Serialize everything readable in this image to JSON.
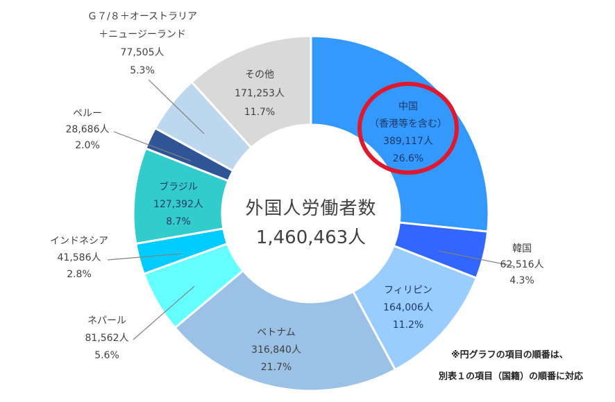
{
  "chart_data": {
    "type": "pie",
    "center": {
      "title": "外国人労働者数",
      "total": "1,460,463人"
    },
    "slices": [
      {
        "name": "中国",
        "sub": "（香港等を含む）",
        "count": "389,117人",
        "value": 26.6,
        "pct": "26.6%",
        "color": "#3399FF",
        "text_color": "#1F3864"
      },
      {
        "name": "韓国",
        "count": "62,516人",
        "value": 4.3,
        "pct": "4.3%",
        "color": "#3366FF",
        "text_color": "#404040"
      },
      {
        "name": "フィリピン",
        "count": "164,006人",
        "value": 11.2,
        "pct": "11.2%",
        "color": "#99CCFF",
        "text_color": "#1F3864"
      },
      {
        "name": "ベトナム",
        "count": "316,840人",
        "value": 21.7,
        "pct": "21.7%",
        "color": "#9BC2E6",
        "text_color": "#404040"
      },
      {
        "name": "ネパール",
        "count": "81,562人",
        "value": 5.6,
        "pct": "5.6%",
        "color": "#66FFFF",
        "text_color": "#404040"
      },
      {
        "name": "インドネシア",
        "count": "41,586人",
        "value": 2.8,
        "pct": "2.8%",
        "color": "#00CCFF",
        "text_color": "#404040"
      },
      {
        "name": "ブラジル",
        "count": "127,392人",
        "value": 8.7,
        "pct": "8.7%",
        "color": "#33CCCC",
        "text_color": "#1F3864"
      },
      {
        "name": "ペルー",
        "count": "28,686人",
        "value": 2.0,
        "pct": "2.0%",
        "color": "#2F5597",
        "text_color": "#404040"
      },
      {
        "name": "Ｇ７/８＋オーストラリア",
        "name2": "＋ニュージーランド",
        "count": "77,505人",
        "value": 5.3,
        "pct": "5.3%",
        "color": "#BDD7EE",
        "text_color": "#404040"
      },
      {
        "name": "その他",
        "count": "171,253人",
        "value": 11.7,
        "pct": "11.7%",
        "color": "#D9D9D9",
        "text_color": "#404040"
      }
    ],
    "highlight": {
      "slice": "中国",
      "color": "#E0182D"
    }
  },
  "notes": {
    "line1": "※円グラフの項目の順番は、",
    "line2": "別表１の項目（国籍）の順番に対応"
  }
}
